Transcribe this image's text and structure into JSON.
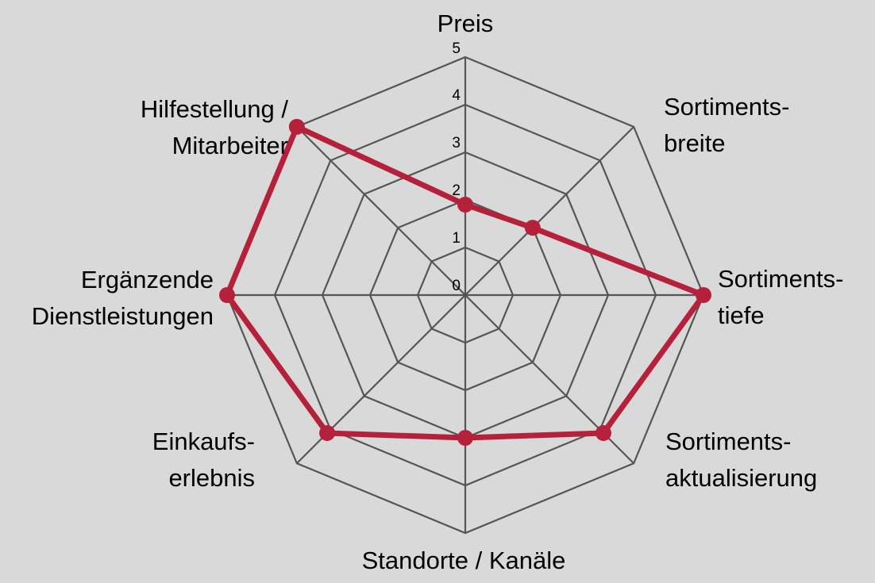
{
  "chart_data": {
    "type": "radar",
    "axes": [
      {
        "lines": [
          "Preis"
        ]
      },
      {
        "lines": [
          "Sortiments-",
          "breite"
        ]
      },
      {
        "lines": [
          "Sortiments-",
          "tiefe"
        ]
      },
      {
        "lines": [
          "Sortiments-",
          "aktualisierung"
        ]
      },
      {
        "lines": [
          "Standorte / Kanäle"
        ]
      },
      {
        "lines": [
          "Einkaufs-",
          "erlebnis"
        ]
      },
      {
        "lines": [
          "Ergänzende",
          "Dienstleistungen"
        ]
      },
      {
        "lines": [
          "Hilfestellung /",
          "Mitarbeiter"
        ]
      }
    ],
    "categories": [
      "Preis",
      "Sortimentsbreite",
      "Sortimentstiefe",
      "Sortimentsaktualisierung",
      "Standorte / Kanäle",
      "Einkaufserlebnis",
      "Ergänzende Dienstleistungen",
      "Hilfestellung / Mitarbeiter"
    ],
    "ticks": [
      "0",
      "1",
      "2",
      "3",
      "4",
      "5"
    ],
    "range": [
      0,
      5
    ],
    "series": [
      {
        "values": [
          1.9,
          2.0,
          5.0,
          4.1,
          3.0,
          4.1,
          5.0,
          5.0
        ],
        "color": "#b5213a"
      }
    ],
    "grid": true,
    "grid_color": "#555555",
    "background": "#d9d9d9"
  }
}
